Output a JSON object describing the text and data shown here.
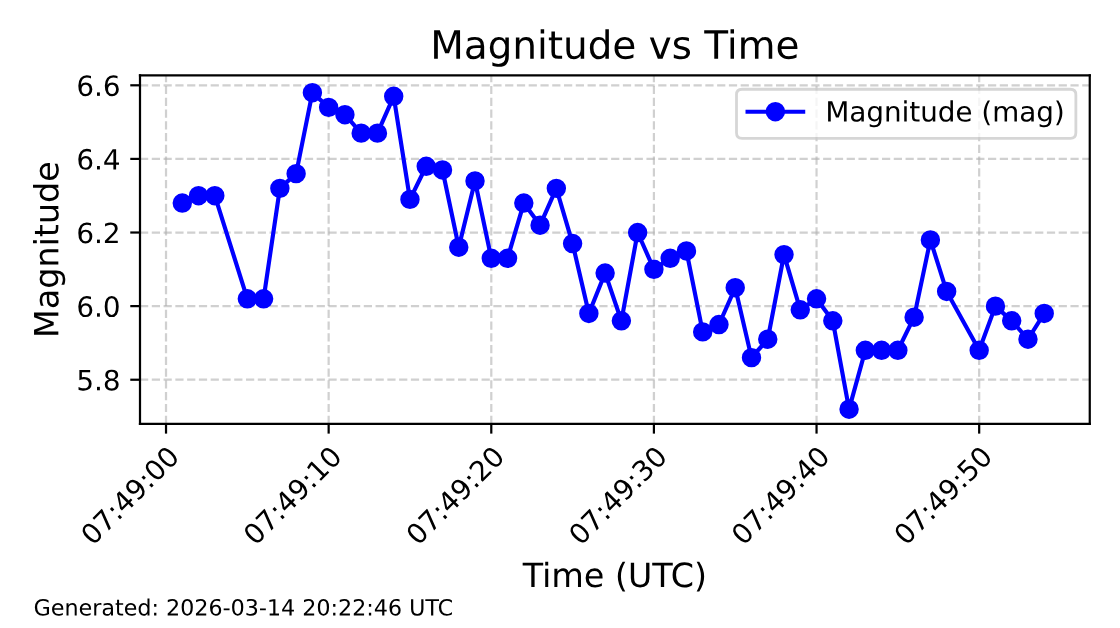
{
  "chart_data": {
    "type": "line",
    "title": "Magnitude vs Time",
    "xlabel": "Time (UTC)",
    "ylabel": "Magnitude",
    "annotations": [
      "Generated: 2026-03-14 20:22:46 UTC"
    ],
    "x": [
      7.8169444,
      7.8172222,
      7.8175,
      7.8180556,
      7.8183333,
      7.8186111,
      7.8188889,
      7.8191667,
      7.8194444,
      7.8197222,
      7.82,
      7.8202778,
      7.8205556,
      7.8208333,
      7.8211111,
      7.8213889,
      7.8216667,
      7.8219444,
      7.8222222,
      7.8225,
      7.8227778,
      7.8230556,
      7.8233333,
      7.8236111,
      7.8238889,
      7.8241667,
      7.8244444,
      7.8247222,
      7.825,
      7.8252778,
      7.8255556,
      7.8258333,
      7.8261111,
      7.8263889,
      7.8266667,
      7.8269444,
      7.8272222,
      7.8275,
      7.8277778,
      7.8280556,
      7.8283333,
      7.8286111,
      7.8288889,
      7.8291667,
      7.8294444,
      7.8297222,
      7.83,
      7.8305556,
      7.8308333,
      7.8311111,
      7.8313889,
      7.8316667
    ],
    "series": [
      {
        "name": "Magnitude (mag)",
        "color": "#0000ff",
        "values": [
          6.28,
          6.3,
          6.3,
          6.02,
          6.02,
          6.32,
          6.36,
          6.58,
          6.54,
          6.52,
          6.47,
          6.47,
          6.57,
          6.29,
          6.38,
          6.37,
          6.16,
          6.34,
          6.13,
          6.13,
          6.28,
          6.22,
          6.32,
          6.17,
          5.98,
          6.09,
          5.96,
          6.2,
          6.1,
          6.13,
          6.15,
          5.93,
          5.95,
          6.05,
          5.86,
          5.91,
          6.14,
          5.99,
          6.02,
          5.96,
          5.72,
          5.88,
          5.88,
          5.88,
          5.97,
          6.18,
          6.04,
          5.88,
          6.0,
          5.96,
          5.91,
          5.98
        ]
      }
    ],
    "xlim": [
      7.8162222,
      7.8324444
    ],
    "xticks": [
      {
        "value": 7.8166667,
        "label": "07:49:00"
      },
      {
        "value": 7.8194444,
        "label": "07:49:10"
      },
      {
        "value": 7.8222222,
        "label": "07:49:20"
      },
      {
        "value": 7.825,
        "label": "07:49:30"
      },
      {
        "value": 7.8277778,
        "label": "07:49:40"
      },
      {
        "value": 7.8305556,
        "label": "07:49:50"
      }
    ],
    "ylim": [
      5.68,
      6.627
    ],
    "yticks": [
      {
        "value": 5.8,
        "label": "5.8"
      },
      {
        "value": 6.0,
        "label": "6.0"
      },
      {
        "value": 6.2,
        "label": "6.2"
      },
      {
        "value": 6.4,
        "label": "6.4"
      },
      {
        "value": 6.6,
        "label": "6.6"
      }
    ],
    "grid": true,
    "legend": "top right",
    "marker": "circle",
    "line_style": "solid"
  }
}
